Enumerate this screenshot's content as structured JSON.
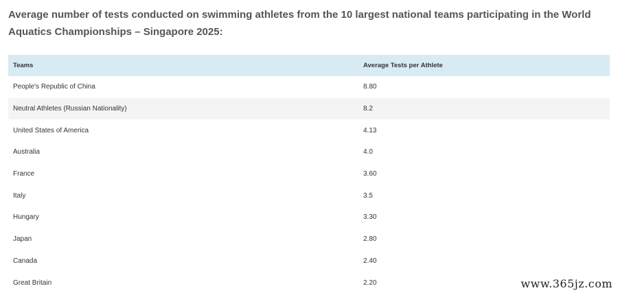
{
  "heading": "Average number of tests conducted on swimming athletes from the 10 largest national teams participating in the World Aquatics Championships – Singapore 2025:",
  "table": {
    "headers": [
      "Teams",
      "Average Tests per Athlete"
    ],
    "rows": [
      {
        "team": "People's Republic of China",
        "value": "8.80"
      },
      {
        "team": "Neutral Athletes (Russian Nationality)",
        "value": "8.2"
      },
      {
        "team": "United States of America",
        "value": "4.13"
      },
      {
        "team": "Australia",
        "value": "4.0"
      },
      {
        "team": "France",
        "value": "3.60"
      },
      {
        "team": "Italy",
        "value": "3.5"
      },
      {
        "team": "Hungary",
        "value": "3.30"
      },
      {
        "team": "Japan",
        "value": "2.80"
      },
      {
        "team": "Canada",
        "value": "2.40"
      },
      {
        "team": "Great Britain",
        "value": "2.20"
      }
    ]
  },
  "watermark": "www.365jz.com",
  "colors": {
    "header_bg": "#d8ebf4",
    "alt_row_bg": "#f4f4f4",
    "heading_text": "#555555"
  }
}
